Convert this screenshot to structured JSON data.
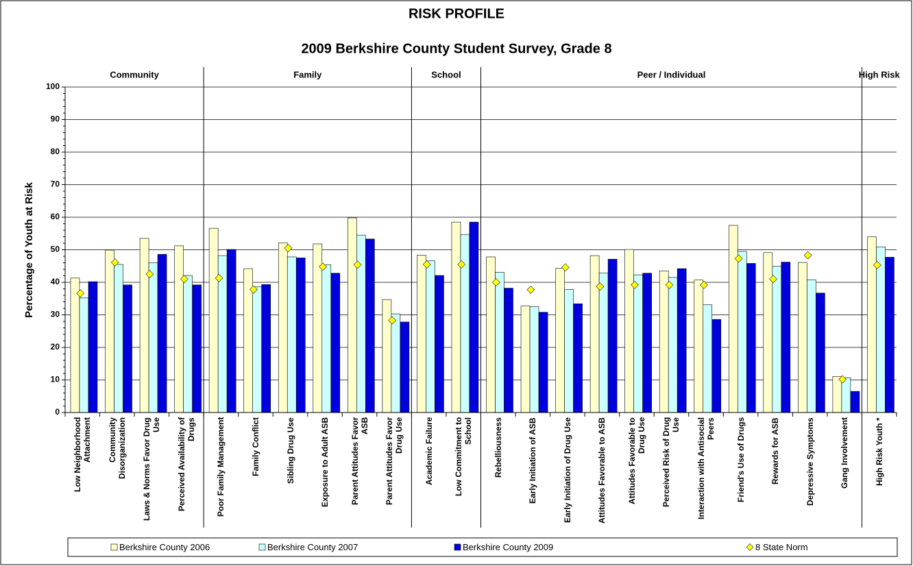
{
  "chart_data": {
    "type": "bar",
    "title": "RISK PROFILE",
    "subtitle": "2009 Berkshire County Student Survey, Grade 8",
    "y_label": "Percentage of Youth at Risk",
    "groups": [
      {
        "name": "Community",
        "categories": [
          "Low Neighborhood Attachment",
          "Community Disorganization",
          "Laws & Norms Favor Drug Use",
          "Perceived Availability of Drugs"
        ]
      },
      {
        "name": "Family",
        "categories": [
          "Poor Family Management",
          "Family Conflict",
          "Sibling Drug Use",
          "Exposure to Adult ASB",
          "Parent Attitudes Favor ASB",
          "Parent Attitudes Favor Drug Use"
        ]
      },
      {
        "name": "School",
        "categories": [
          "Academic Failure",
          "Low Commitment to School"
        ]
      },
      {
        "name": "Peer / Individual",
        "categories": [
          "Rebelliousness",
          "Early Initiation of ASB",
          "Early Initiation of Drug Use",
          "Attitudes Favorable to ASB",
          "Attitudes Favorable to Drug Use",
          "Perceived Risk of Drug Use",
          "Interaction with Antisocial Peers",
          "Friend's Use of Drugs",
          "Rewards for ASB",
          "Depressive Symptoms",
          "Gang Involvement"
        ]
      },
      {
        "name": "High Risk",
        "categories": [
          "High Risk Youth *"
        ]
      }
    ],
    "series": [
      {
        "name": "Berkshire County 2006",
        "color": "#ffffcc",
        "values": [
          41.3,
          49.9,
          53.5,
          51.2,
          56.6,
          44.2,
          52.1,
          51.8,
          59.8,
          34.7,
          48.3,
          58.5,
          47.8,
          32.7,
          44.3,
          48.2,
          50.1,
          43.5,
          40.7,
          57.5,
          49.1,
          46.1,
          11.1,
          54.0
        ]
      },
      {
        "name": "Berkshire County 2007",
        "color": "#ccffff",
        "values": [
          35.2,
          45.5,
          46.0,
          42.1,
          48.2,
          38.6,
          47.8,
          45.4,
          54.5,
          30.3,
          46.6,
          54.7,
          43.1,
          32.5,
          37.8,
          42.9,
          42.3,
          41.5,
          33.1,
          49.5,
          44.9,
          40.8,
          10.7,
          50.9
        ]
      },
      {
        "name": "Berkshire County 2009",
        "color": "#0000dd",
        "values": [
          40.2,
          39.2,
          48.6,
          39.2,
          50.1,
          39.3,
          47.5,
          42.8,
          53.3,
          27.8,
          42.1,
          58.5,
          38.2,
          30.8,
          33.4,
          47.1,
          42.8,
          44.2,
          28.6,
          45.8,
          46.2,
          36.7,
          6.5,
          47.7
        ]
      },
      {
        "name": "8 State Norm",
        "color": "#ffff00",
        "marker": "diamond",
        "values": [
          36.6,
          46.1,
          42.5,
          41.0,
          41.3,
          37.8,
          50.5,
          44.8,
          45.4,
          28.3,
          45.5,
          45.5,
          40.0,
          37.7,
          44.6,
          38.7,
          39.2,
          39.2,
          39.2,
          47.3,
          41.0,
          48.3,
          10.2,
          45.3
        ]
      }
    ],
    "ylim": [
      0,
      100
    ],
    "yticks": [
      0,
      10,
      20,
      30,
      40,
      50,
      60,
      70,
      80,
      90,
      100
    ],
    "grid": true,
    "legend": "bottom"
  }
}
